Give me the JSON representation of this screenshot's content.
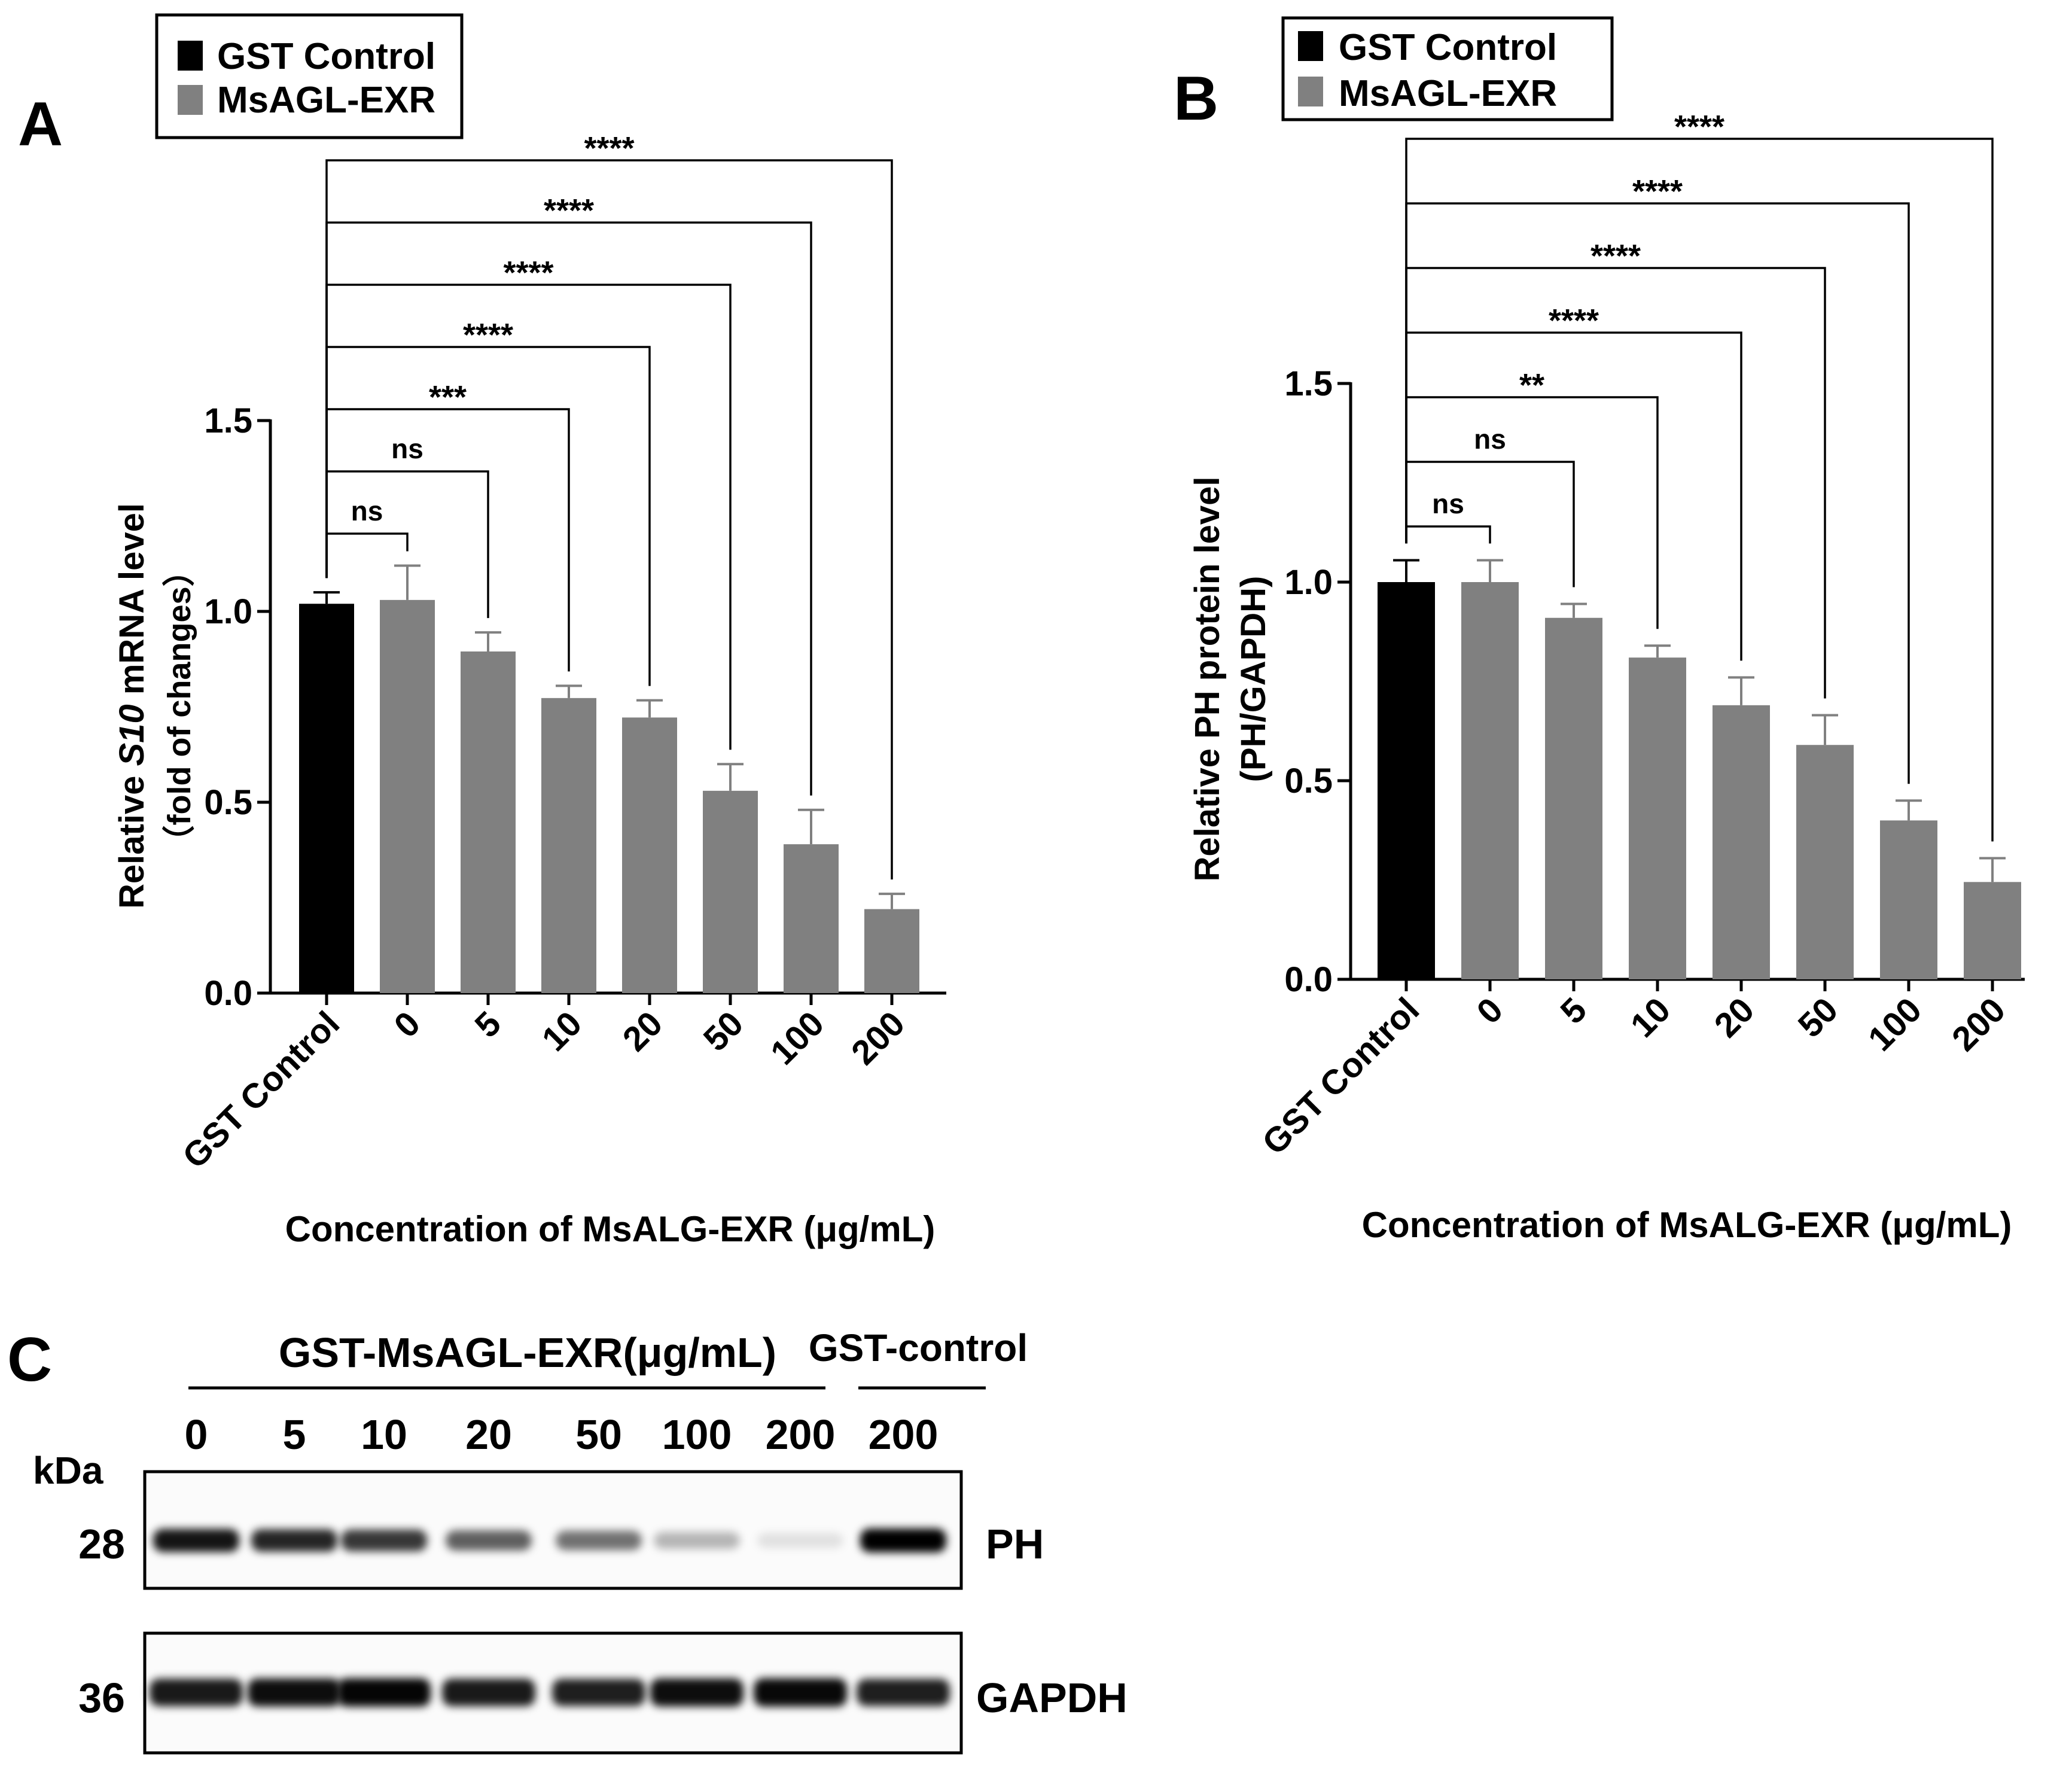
{
  "panels": {
    "A": "A",
    "B": "B",
    "C": "C"
  },
  "legend": {
    "control_label": "GST Control",
    "treatment_label": "MsAGL-EXR"
  },
  "colors": {
    "control": "#000000",
    "treatment": "#808080",
    "axis": "#000000"
  },
  "chart_data": [
    {
      "id": "A",
      "type": "bar",
      "ylabel_prefix": "Relative ",
      "ylabel_gene": "S10",
      "ylabel_suffix": " mRNA level",
      "ylabel_line2": "（fold of changes）",
      "xlabel": "Concentration of MsALG-EXR (μg/mL)",
      "categories": [
        "GST Control",
        "0",
        "5",
        "10",
        "20",
        "50",
        "100",
        "200"
      ],
      "values": [
        1.02,
        1.03,
        0.895,
        0.773,
        0.722,
        0.53,
        0.39,
        0.22
      ],
      "errors": [
        0.03,
        0.09,
        0.05,
        0.032,
        0.045,
        0.07,
        0.09,
        0.04
      ],
      "yticks": [
        "0.0",
        "0.5",
        "1.0",
        "1.5"
      ],
      "ylim": [
        0,
        1.5
      ],
      "significance": [
        "ns",
        "ns",
        "***",
        "****",
        "****",
        "****",
        "****"
      ]
    },
    {
      "id": "B",
      "type": "bar",
      "ylabel_line1": "Relative PH protein level",
      "ylabel_line2": "(PH/GAPDH)",
      "xlabel": "Concentration of MsALG-EXR (μg/mL)",
      "categories": [
        "GST Control",
        "0",
        "5",
        "10",
        "20",
        "50",
        "100",
        "200"
      ],
      "values": [
        1.0,
        1.0,
        0.91,
        0.81,
        0.69,
        0.59,
        0.4,
        0.245
      ],
      "errors": [
        0.055,
        0.055,
        0.035,
        0.03,
        0.07,
        0.075,
        0.05,
        0.06
      ],
      "yticks": [
        "0.0",
        "0.5",
        "1.0",
        "1.5"
      ],
      "ylim": [
        0,
        1.5
      ],
      "significance": [
        "ns",
        "ns",
        "**",
        "****",
        "****",
        "****",
        "****"
      ]
    }
  ],
  "blot": {
    "treatment_header": "GST-MsAGL-EXR(μg/mL)",
    "control_header": "GST-control",
    "lanes": [
      "0",
      "5",
      "10",
      "20",
      "50",
      "100",
      "200",
      "200"
    ],
    "kda_label": "kDa",
    "ph_kda": "28",
    "gapdh_kda": "36",
    "ph_label": "PH",
    "gapdh_label": "GAPDH",
    "ph_intensity": [
      0.92,
      0.85,
      0.78,
      0.62,
      0.55,
      0.28,
      0.1,
      1.0
    ],
    "gapdh_intensity": [
      0.9,
      0.95,
      0.98,
      0.9,
      0.88,
      0.95,
      0.97,
      0.88
    ]
  }
}
